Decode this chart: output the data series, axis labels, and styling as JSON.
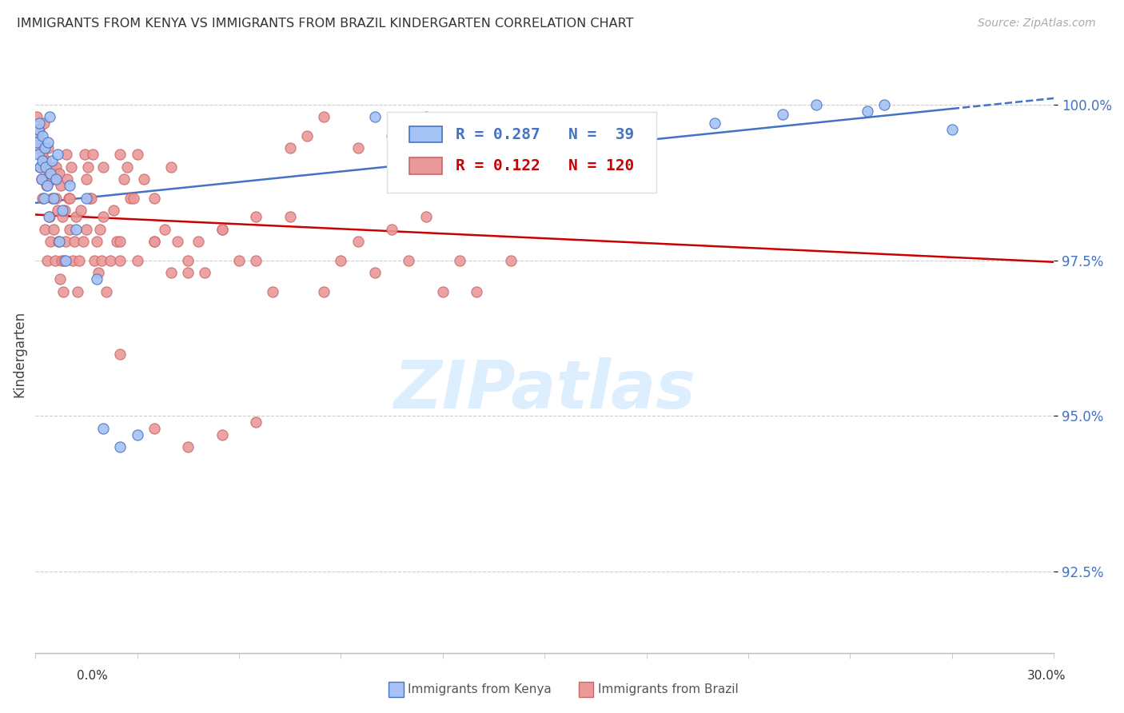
{
  "title": "IMMIGRANTS FROM KENYA VS IMMIGRANTS FROM BRAZIL KINDERGARTEN CORRELATION CHART",
  "source": "Source: ZipAtlas.com",
  "ylabel": "Kindergarten",
  "xmin": 0.0,
  "xmax": 30.0,
  "ymin": 91.2,
  "ymax": 100.8,
  "yticks": [
    92.5,
    95.0,
    97.5,
    100.0
  ],
  "ytick_labels": [
    "92.5%",
    "95.0%",
    "97.5%",
    "100.0%"
  ],
  "kenya_R": 0.287,
  "kenya_N": 39,
  "brazil_R": 0.122,
  "brazil_N": 120,
  "kenya_color": "#a4c2f4",
  "brazil_color": "#ea9999",
  "kenya_line_color": "#4472c4",
  "brazil_line_color": "#cc0000",
  "legend_kenya": "Immigrants from Kenya",
  "legend_brazil": "Immigrants from Brazil",
  "watermark_color": "#ddeeff",
  "kenya_x": [
    0.05,
    0.08,
    0.1,
    0.12,
    0.15,
    0.18,
    0.2,
    0.22,
    0.25,
    0.28,
    0.3,
    0.35,
    0.38,
    0.4,
    0.42,
    0.45,
    0.5,
    0.55,
    0.6,
    0.65,
    0.7,
    0.8,
    0.9,
    1.0,
    1.2,
    1.5,
    1.8,
    2.0,
    2.5,
    3.0,
    10.0,
    12.0,
    15.0,
    20.0,
    22.0,
    23.0,
    24.5,
    25.0,
    27.0
  ],
  "kenya_y": [
    99.4,
    99.6,
    99.2,
    99.7,
    99.0,
    98.8,
    99.5,
    99.1,
    98.5,
    99.3,
    99.0,
    98.7,
    99.4,
    98.2,
    99.8,
    98.9,
    99.1,
    98.5,
    98.8,
    99.2,
    97.8,
    98.3,
    97.5,
    98.7,
    98.0,
    98.5,
    97.2,
    94.8,
    94.5,
    94.7,
    99.8,
    99.6,
    99.5,
    99.7,
    99.85,
    100.0,
    99.9,
    100.0,
    99.6
  ],
  "brazil_x": [
    0.05,
    0.08,
    0.1,
    0.12,
    0.15,
    0.18,
    0.2,
    0.22,
    0.25,
    0.28,
    0.3,
    0.32,
    0.35,
    0.38,
    0.4,
    0.42,
    0.45,
    0.48,
    0.5,
    0.52,
    0.55,
    0.58,
    0.6,
    0.62,
    0.65,
    0.68,
    0.7,
    0.72,
    0.75,
    0.78,
    0.8,
    0.82,
    0.85,
    0.88,
    0.9,
    0.92,
    0.95,
    0.98,
    1.0,
    1.05,
    1.1,
    1.15,
    1.2,
    1.25,
    1.3,
    1.35,
    1.4,
    1.45,
    1.5,
    1.55,
    1.6,
    1.65,
    1.7,
    1.75,
    1.8,
    1.85,
    1.9,
    1.95,
    2.0,
    2.1,
    2.2,
    2.3,
    2.4,
    2.5,
    2.6,
    2.7,
    2.8,
    2.9,
    3.0,
    3.2,
    3.5,
    3.8,
    4.0,
    4.2,
    4.5,
    4.8,
    5.0,
    5.5,
    6.0,
    6.5,
    7.0,
    7.5,
    8.0,
    8.5,
    9.0,
    9.5,
    10.0,
    10.5,
    11.0,
    11.5,
    12.0,
    12.5,
    13.0,
    14.0,
    15.0,
    16.0,
    2.5,
    3.5,
    4.5,
    5.5,
    6.5,
    7.5,
    8.5,
    9.5,
    10.5,
    11.5,
    12.5,
    0.5,
    1.0,
    1.5,
    2.0,
    2.5,
    3.0,
    3.5,
    4.0,
    2.5,
    3.5,
    4.5,
    5.5,
    6.5
  ],
  "brazil_y": [
    99.8,
    99.5,
    99.3,
    99.6,
    99.0,
    98.8,
    98.5,
    99.2,
    99.7,
    98.0,
    99.1,
    98.7,
    97.5,
    99.3,
    98.9,
    98.2,
    97.8,
    99.0,
    98.5,
    98.8,
    98.0,
    97.5,
    98.5,
    99.0,
    98.3,
    97.8,
    98.9,
    97.2,
    98.7,
    97.5,
    98.2,
    97.0,
    97.5,
    98.3,
    97.8,
    99.2,
    98.8,
    98.5,
    98.0,
    99.0,
    97.5,
    97.8,
    98.2,
    97.0,
    97.5,
    98.3,
    97.8,
    99.2,
    98.8,
    99.0,
    98.5,
    98.5,
    99.2,
    97.5,
    97.8,
    97.3,
    98.0,
    97.5,
    98.2,
    97.0,
    97.5,
    98.3,
    97.8,
    99.2,
    98.8,
    99.0,
    98.5,
    98.5,
    99.2,
    98.8,
    98.5,
    98.0,
    99.0,
    97.8,
    97.5,
    97.8,
    97.3,
    98.0,
    97.5,
    98.2,
    97.0,
    99.3,
    99.5,
    99.8,
    97.5,
    97.8,
    97.3,
    98.0,
    97.5,
    98.2,
    97.0,
    99.3,
    97.0,
    97.5,
    99.3,
    99.5,
    97.5,
    97.8,
    97.3,
    98.0,
    97.5,
    98.2,
    97.0,
    99.3,
    99.5,
    99.8,
    97.5,
    98.8,
    98.5,
    98.0,
    99.0,
    97.8,
    97.5,
    97.8,
    97.3,
    96.0,
    94.8,
    94.5,
    94.7,
    94.9
  ]
}
